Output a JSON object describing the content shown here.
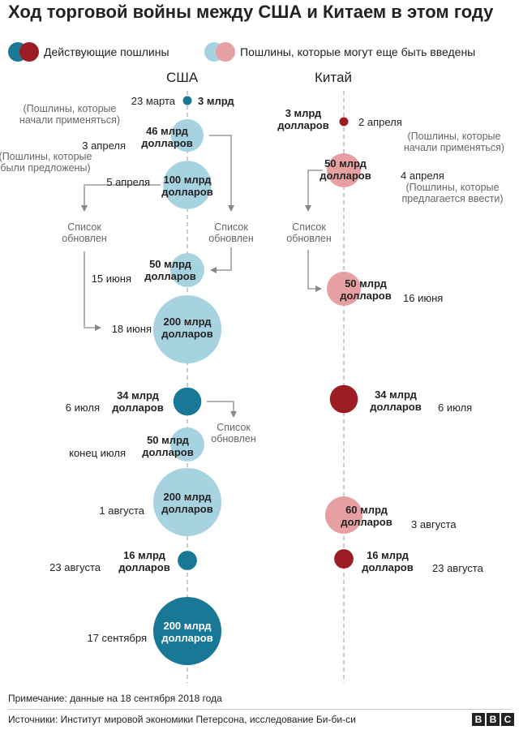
{
  "title": "Ход торговой войны между США и Китаем в этом году",
  "legend": {
    "active_label": "Действующие пошлины",
    "proposed_label": "Пошлины, которые могут еще быть введены"
  },
  "columns": {
    "usa": "США",
    "china": "Китай"
  },
  "colors": {
    "usa_active": "#1a7897",
    "usa_proposed": "#a6d3df",
    "china_active": "#9c1c23",
    "china_proposed": "#e6a0a2",
    "connector": "#888888",
    "axis": "#bbbbbb"
  },
  "events": [
    {
      "country": "usa",
      "status": "active",
      "amount_bn_usd": 3,
      "label": [
        "3 млрд"
      ],
      "date": "23 марта"
    },
    {
      "country": "usa",
      "status": "proposed",
      "amount_bn_usd": 46,
      "label": [
        "46 млрд",
        "долларов"
      ],
      "date": "3 апреля"
    },
    {
      "country": "usa",
      "status": "proposed",
      "amount_bn_usd": 100,
      "label": [
        "100 млрд",
        "долларов"
      ],
      "date": "5 апреля"
    },
    {
      "country": "usa",
      "status": "proposed",
      "amount_bn_usd": 50,
      "label": [
        "50 млрд",
        "долларов"
      ],
      "date": "15 июня"
    },
    {
      "country": "usa",
      "status": "proposed",
      "amount_bn_usd": 200,
      "label": [
        "200 млрд",
        "долларов"
      ],
      "date": "18 июня"
    },
    {
      "country": "usa",
      "status": "active",
      "amount_bn_usd": 34,
      "label": [
        "34 млрд",
        "долларов"
      ],
      "date": "6 июля"
    },
    {
      "country": "usa",
      "status": "proposed",
      "amount_bn_usd": 50,
      "label": [
        "50 млрд",
        "долларов"
      ],
      "date": "конец июля"
    },
    {
      "country": "usa",
      "status": "proposed",
      "amount_bn_usd": 200,
      "label": [
        "200 млрд",
        "долларов"
      ],
      "date": "1 августа"
    },
    {
      "country": "usa",
      "status": "active",
      "amount_bn_usd": 16,
      "label": [
        "16 млрд",
        "долларов"
      ],
      "date": "23 августа"
    },
    {
      "country": "usa",
      "status": "active",
      "amount_bn_usd": 200,
      "label": [
        "200 млрд",
        "долларов"
      ],
      "date": "17 сентября"
    },
    {
      "country": "china",
      "status": "active",
      "amount_bn_usd": 3,
      "label": [
        "3 млрд",
        "долларов"
      ],
      "date": "2 апреля"
    },
    {
      "country": "china",
      "status": "proposed",
      "amount_bn_usd": 50,
      "label": [
        "50 млрд",
        "долларов"
      ],
      "date": "4 апреля"
    },
    {
      "country": "china",
      "status": "proposed",
      "amount_bn_usd": 50,
      "label": [
        "50 млрд",
        "долларов"
      ],
      "date": "16 июня"
    },
    {
      "country": "china",
      "status": "active",
      "amount_bn_usd": 34,
      "label": [
        "34 млрд",
        "долларов"
      ],
      "date": "6 июля"
    },
    {
      "country": "china",
      "status": "proposed",
      "amount_bn_usd": 60,
      "label": [
        "60 млрд",
        "долларов"
      ],
      "date": "3 августа"
    },
    {
      "country": "china",
      "status": "active",
      "amount_bn_usd": 16,
      "label": [
        "16 млрд",
        "долларов"
      ],
      "date": "23 августа"
    }
  ],
  "annotations": {
    "usa_started": [
      "(Пошлины, которые",
      "начали применяться)"
    ],
    "usa_proposed": [
      "(Пошлины, которые",
      "были предложены)"
    ],
    "china_started": [
      "(Пошлины, которые",
      "начали применяться)"
    ],
    "china_proposed": [
      "(Пошлины, которые",
      "предлагается ввести)"
    ],
    "list_updated": [
      "Список",
      "обновлен"
    ]
  },
  "note": "Примечание: данные на 18 сентября 2018 года",
  "source": "Источники: Институт мировой экономики Петерсона, исследование Би-би-си",
  "brand": [
    "B",
    "B",
    "C"
  ]
}
